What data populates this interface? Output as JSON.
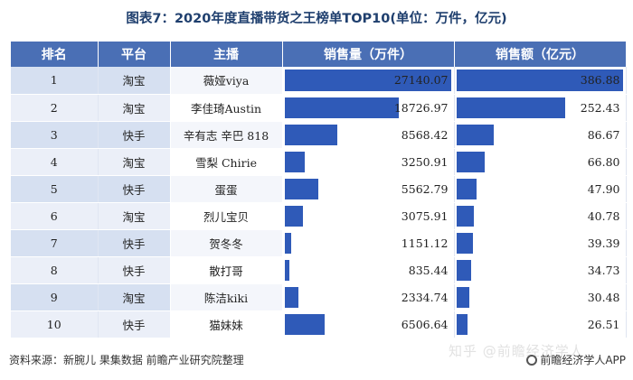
{
  "title": "图表7：2020年度直播带货之王榜单TOP10(单位：万件，亿元)",
  "table": {
    "headers": [
      "排名",
      "平台",
      "主播",
      "销售量（万件）",
      "销售额（亿元）"
    ],
    "rows": [
      {
        "rank": "1",
        "platform": "淘宝",
        "host": "薇娅viya",
        "volume": "27140.07",
        "amount": "386.88"
      },
      {
        "rank": "2",
        "platform": "淘宝",
        "host": "李佳琦Austin",
        "volume": "18726.97",
        "amount": "252.43"
      },
      {
        "rank": "3",
        "platform": "快手",
        "host": "辛有志 辛巴 818",
        "volume": "8568.42",
        "amount": "86.67"
      },
      {
        "rank": "4",
        "platform": "淘宝",
        "host": "雪梨 Chirie",
        "volume": "3250.91",
        "amount": "66.80"
      },
      {
        "rank": "5",
        "platform": "快手",
        "host": "蛋蛋",
        "volume": "5562.79",
        "amount": "47.90"
      },
      {
        "rank": "6",
        "platform": "淘宝",
        "host": "烈儿宝贝",
        "volume": "3075.91",
        "amount": "40.78"
      },
      {
        "rank": "7",
        "platform": "快手",
        "host": "贺冬冬",
        "volume": "1151.12",
        "amount": "39.39"
      },
      {
        "rank": "8",
        "platform": "快手",
        "host": "散打哥",
        "volume": "835.44",
        "amount": "34.73"
      },
      {
        "rank": "9",
        "platform": "淘宝",
        "host": "陈洁kiki",
        "volume": "2334.74",
        "amount": "30.48"
      },
      {
        "rank": "10",
        "platform": "快手",
        "host": "猫妹妹",
        "volume": "6506.64",
        "amount": "26.51"
      }
    ]
  },
  "footer": {
    "source": "资料来源：新腕儿 果集数据 前瞻产业研究院整理",
    "watermark": "知乎 @前瞻经济学人",
    "brand": "前瞻经济学人APP"
  },
  "colors": {
    "header_bg": "#4a6fb5",
    "bar": "#2f5ab8",
    "title": "#1f3f6e"
  }
}
